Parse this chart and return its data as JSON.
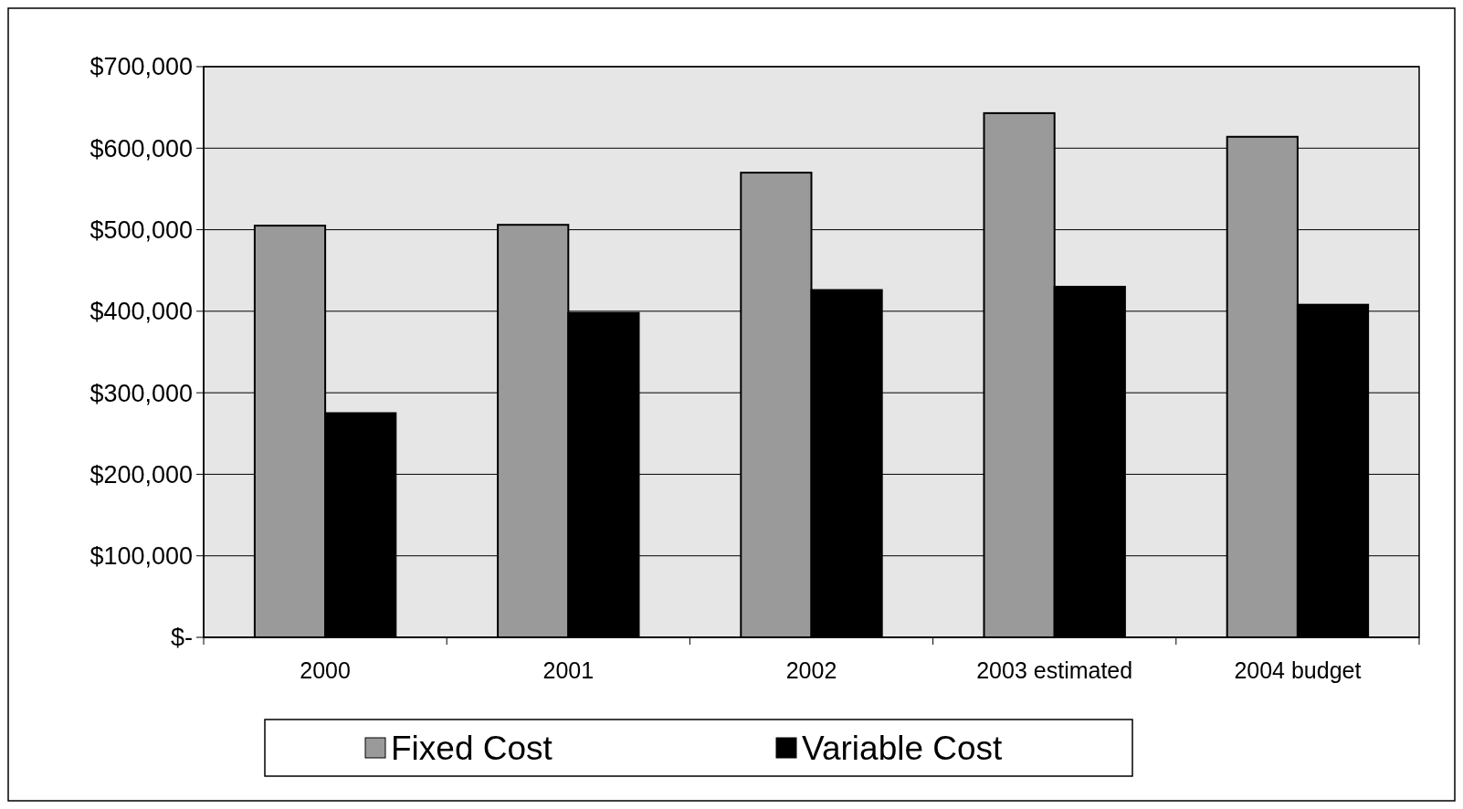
{
  "chart_data": {
    "type": "bar",
    "categories": [
      "2000",
      "2001",
      "2002",
      "2003 estimated",
      "2004 budget"
    ],
    "series": [
      {
        "name": "Fixed Cost",
        "color": "#9a9a9a",
        "values": [
          505000,
          506000,
          570000,
          643000,
          614000
        ]
      },
      {
        "name": "Variable Cost",
        "color": "#000000",
        "values": [
          275000,
          398000,
          426000,
          430000,
          408000
        ]
      }
    ],
    "ylim": [
      0,
      700000
    ],
    "yticks": [
      {
        "value": 0,
        "label": "$-"
      },
      {
        "value": 100000,
        "label": "$100,000"
      },
      {
        "value": 200000,
        "label": "$200,000"
      },
      {
        "value": 300000,
        "label": "$300,000"
      },
      {
        "value": 400000,
        "label": "$400,000"
      },
      {
        "value": 500000,
        "label": "$500,000"
      },
      {
        "value": 600000,
        "label": "$600,000"
      },
      {
        "value": 700000,
        "label": "$700,000"
      }
    ],
    "grid": "y",
    "legend": "bottom"
  }
}
